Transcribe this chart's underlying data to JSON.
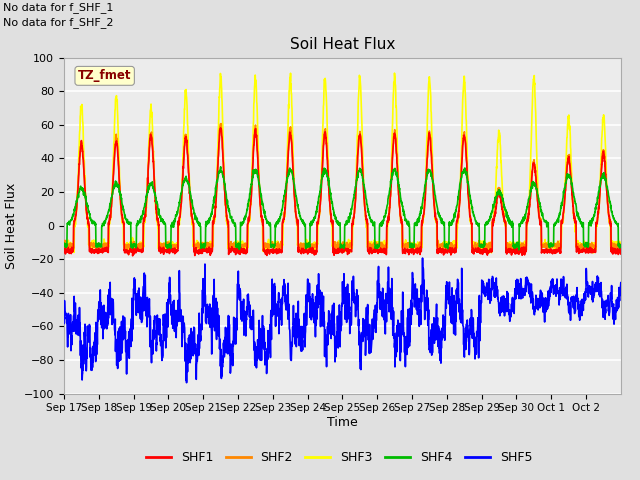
{
  "title": "Soil Heat Flux",
  "ylabel": "Soil Heat Flux",
  "xlabel": "Time",
  "ylim": [
    -100,
    100
  ],
  "background_color": "#e0e0e0",
  "plot_bg_color": "#ececec",
  "grid_color": "white",
  "text_no_data": [
    "No data for f_SHF_1",
    "No data for f_SHF_2"
  ],
  "legend_labels": [
    "SHF1",
    "SHF2",
    "SHF3",
    "SHF4",
    "SHF5"
  ],
  "legend_colors": [
    "#ff0000",
    "#ff8800",
    "#ffff00",
    "#00bb00",
    "#0000ff"
  ],
  "tz_label": "TZ_fmet",
  "tz_label_color": "#880000",
  "tz_box_color": "#ffffcc",
  "x_tick_labels": [
    "Sep 17",
    "Sep 18",
    "Sep 19",
    "Sep 20",
    "Sep 21",
    "Sep 22",
    "Sep 23",
    "Sep 24",
    "Sep 25",
    "Sep 26",
    "Sep 27",
    "Sep 28",
    "Sep 29",
    "Sep 30",
    "Oct 1",
    "Oct 2"
  ],
  "shf1_color": "#ff0000",
  "shf2_color": "#ff8800",
  "shf3_color": "#ffff00",
  "shf4_color": "#00bb00",
  "shf5_color": "#0000ff",
  "line_width": 1.2
}
